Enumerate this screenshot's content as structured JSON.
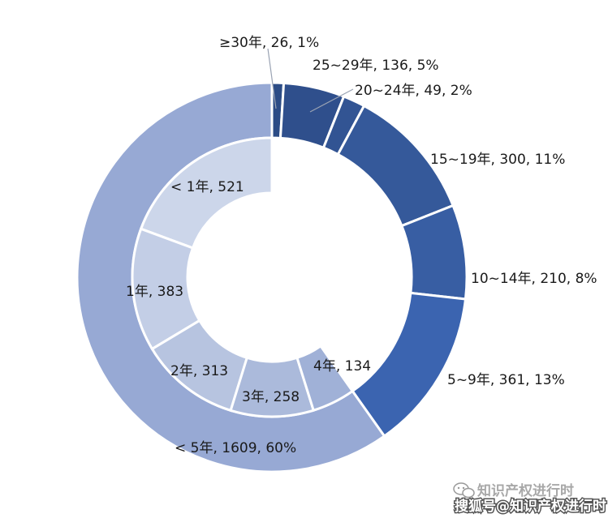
{
  "chart_data": [
    {
      "type": "pie",
      "ring": "outer",
      "series": [
        {
          "label": "≥30年, 26, 1%",
          "value": 26,
          "color": "#2c4c86"
        },
        {
          "label": "25~29年, 136, 5%",
          "value": 136,
          "color": "#2f4f8c"
        },
        {
          "label": "20~24年, 49, 2%",
          "value": 49,
          "color": "#325493"
        },
        {
          "label": "15~19年, 300, 11%",
          "value": 300,
          "color": "#35599a"
        },
        {
          "label": "10~14年, 210, 8%",
          "value": 210,
          "color": "#385ea3"
        },
        {
          "label": "5~9年, 361, 13%",
          "value": 361,
          "color": "#3b64b0"
        },
        {
          "label": "< 5年, 1609, 60%",
          "value": 1609,
          "color": "#97a9d4"
        }
      ]
    },
    {
      "type": "pie",
      "ring": "inner",
      "series": [
        {
          "label": "< 1年, 521",
          "value": 521,
          "color": "#ccd6ea"
        },
        {
          "label": "1年, 383",
          "value": 383,
          "color": "#c3cee6"
        },
        {
          "label": "2年, 313",
          "value": 313,
          "color": "#b7c4e0"
        },
        {
          "label": "3年, 258",
          "value": 258,
          "color": "#abbadb"
        },
        {
          "label": "4年, 134",
          "value": 134,
          "color": "#a0b1d7"
        }
      ]
    }
  ],
  "watermark": {
    "line1": "知识产权进行时",
    "line2": "搜狐号@知识产权进行时"
  }
}
